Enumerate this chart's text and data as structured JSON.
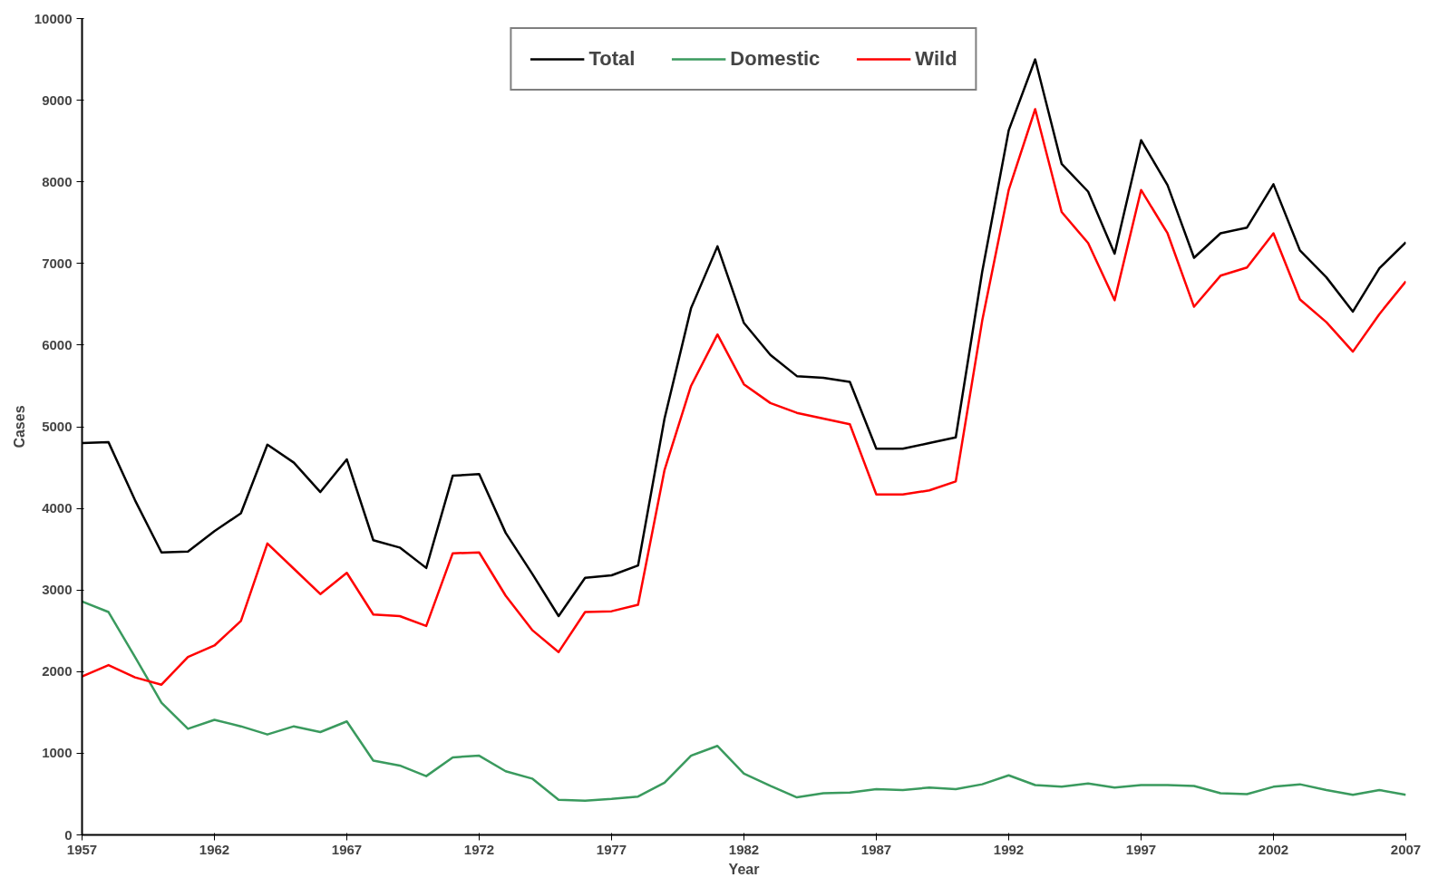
{
  "chart_data": {
    "type": "line",
    "xlabel": "Year",
    "ylabel": "Cases",
    "x": [
      1957,
      1958,
      1959,
      1960,
      1961,
      1962,
      1963,
      1964,
      1965,
      1966,
      1967,
      1968,
      1969,
      1970,
      1971,
      1972,
      1973,
      1974,
      1975,
      1976,
      1977,
      1978,
      1979,
      1980,
      1981,
      1982,
      1983,
      1984,
      1985,
      1986,
      1987,
      1988,
      1989,
      1990,
      1991,
      1992,
      1993,
      1994,
      1995,
      1996,
      1997,
      1998,
      1999,
      2000,
      2001,
      2002,
      2003,
      2004,
      2005,
      2006,
      2007
    ],
    "series": [
      {
        "name": "Total",
        "color": "#000000",
        "values": [
          4800,
          4810,
          4100,
          3460,
          3470,
          3720,
          3940,
          4780,
          4560,
          4200,
          4600,
          3610,
          3520,
          3270,
          4400,
          4420,
          3700,
          3200,
          2680,
          3150,
          3180,
          3300,
          5100,
          6450,
          7210,
          6270,
          5880,
          5620,
          5600,
          5550,
          4730,
          4730,
          4800,
          4870,
          6900,
          8630,
          9500,
          8220,
          7880,
          7120,
          8510,
          7960,
          7070,
          7370,
          7440,
          7970,
          7160,
          6830,
          6410,
          6940,
          7260
        ]
      },
      {
        "name": "Domestic",
        "color": "#3a9a5e",
        "values": [
          2860,
          2730,
          2180,
          1620,
          1300,
          1410,
          1330,
          1230,
          1330,
          1260,
          1390,
          910,
          850,
          720,
          950,
          970,
          780,
          690,
          430,
          420,
          440,
          470,
          640,
          970,
          1090,
          750,
          600,
          460,
          510,
          520,
          560,
          550,
          580,
          560,
          620,
          730,
          610,
          590,
          630,
          580,
          610,
          610,
          600,
          510,
          500,
          590,
          620,
          550,
          490,
          550,
          490
        ]
      },
      {
        "name": "Wild",
        "color": "#ff0000",
        "values": [
          1940,
          2080,
          1930,
          1840,
          2180,
          2320,
          2620,
          3570,
          3260,
          2950,
          3210,
          2700,
          2680,
          2560,
          3450,
          3460,
          2930,
          2510,
          2240,
          2730,
          2740,
          2820,
          4470,
          5500,
          6130,
          5520,
          5290,
          5170,
          5100,
          5030,
          4170,
          4170,
          4220,
          4330,
          6300,
          7900,
          8890,
          7630,
          7250,
          6550,
          7900,
          7370,
          6470,
          6850,
          6950,
          7370,
          6560,
          6280,
          5920,
          6380,
          6780
        ]
      }
    ],
    "xlim": [
      1957,
      2007
    ],
    "xticks": [
      1957,
      1962,
      1967,
      1972,
      1977,
      1982,
      1987,
      1992,
      1997,
      2002,
      2007
    ],
    "ylim": [
      0,
      10000
    ],
    "yticks": [
      0,
      1000,
      2000,
      3000,
      4000,
      5000,
      6000,
      7000,
      8000,
      9000,
      10000
    ],
    "grid": false,
    "legend": "top",
    "line_style": "solid",
    "marker": "none"
  }
}
